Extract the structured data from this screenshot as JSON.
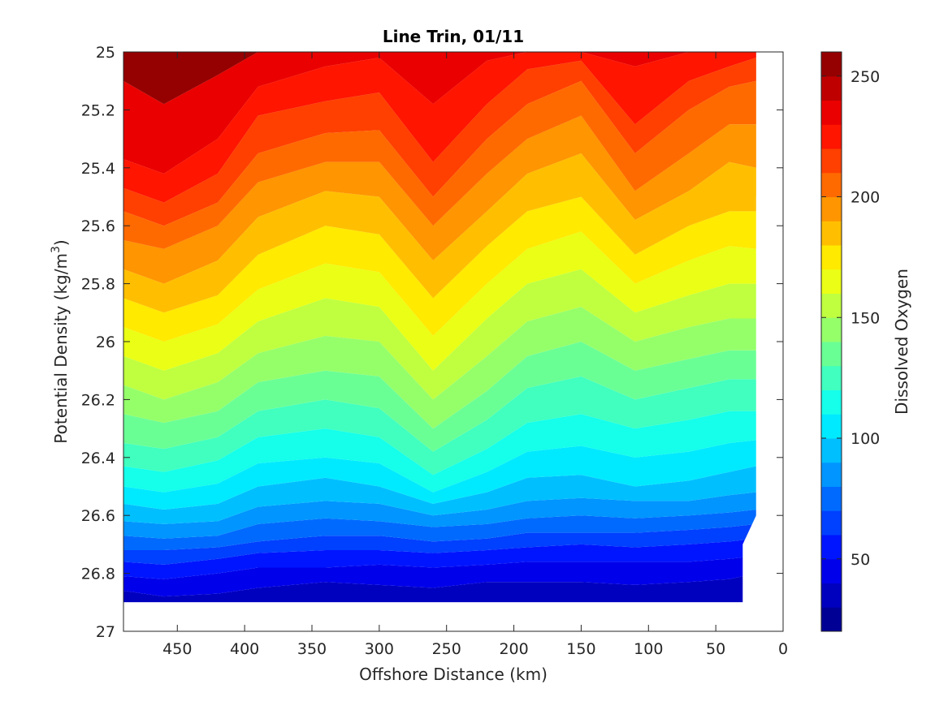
{
  "chart_data": {
    "type": "contour",
    "title": "Line Trin, 01/11",
    "xlabel": "Offshore Distance (km)",
    "ylabel": "Potential Density (kg/m",
    "ylabel_sup": "3",
    "ylabel_close": ")",
    "xlim": [
      490,
      0
    ],
    "ylim": [
      25,
      27
    ],
    "y_reversed": true,
    "x_reversed": true,
    "x_ticks": [
      450,
      400,
      350,
      300,
      250,
      200,
      150,
      100,
      50,
      0
    ],
    "y_ticks": [
      25,
      25.2,
      25.4,
      25.6,
      25.8,
      26,
      26.2,
      26.4,
      26.6,
      26.8,
      27
    ],
    "colorbar": {
      "label": "Dissolved Oxygen",
      "range": [
        20,
        260
      ],
      "ticks": [
        50,
        100,
        150,
        200,
        250
      ],
      "level_step": 10,
      "colormap": "jet"
    },
    "field": {
      "x": [
        490,
        460,
        420,
        390,
        340,
        300,
        260,
        220,
        190,
        150,
        110,
        70,
        40,
        20
      ],
      "density_of_level_isolines": [
        {
          "level": 250,
          "density": [
            25.1,
            25.18,
            25.08,
            25.0,
            25.0,
            25.0,
            25.0,
            25.0,
            25.0,
            25.0,
            25.0,
            25.0,
            25.0,
            25.0
          ]
        },
        {
          "level": 230,
          "density": [
            25.37,
            25.42,
            25.3,
            25.12,
            25.05,
            25.02,
            25.18,
            25.03,
            25.0,
            25.0,
            25.05,
            25.0,
            25.0,
            25.0
          ]
        },
        {
          "level": 220,
          "density": [
            25.47,
            25.52,
            25.42,
            25.22,
            25.17,
            25.14,
            25.38,
            25.18,
            25.06,
            25.03,
            25.25,
            25.1,
            25.05,
            25.02
          ]
        },
        {
          "level": 210,
          "density": [
            25.55,
            25.6,
            25.52,
            25.35,
            25.28,
            25.27,
            25.5,
            25.3,
            25.18,
            25.1,
            25.35,
            25.2,
            25.12,
            25.1
          ]
        },
        {
          "level": 200,
          "density": [
            25.65,
            25.68,
            25.6,
            25.45,
            25.38,
            25.38,
            25.6,
            25.42,
            25.3,
            25.22,
            25.48,
            25.35,
            25.25,
            25.25
          ]
        },
        {
          "level": 190,
          "density": [
            25.75,
            25.8,
            25.72,
            25.57,
            25.48,
            25.5,
            25.72,
            25.55,
            25.42,
            25.35,
            25.58,
            25.48,
            25.38,
            25.4
          ]
        },
        {
          "level": 180,
          "density": [
            25.85,
            25.9,
            25.84,
            25.7,
            25.6,
            25.63,
            25.85,
            25.67,
            25.55,
            25.5,
            25.7,
            25.6,
            25.55,
            25.55
          ]
        },
        {
          "level": 170,
          "density": [
            25.95,
            26.0,
            25.94,
            25.82,
            25.73,
            25.76,
            25.98,
            25.8,
            25.68,
            25.62,
            25.8,
            25.72,
            25.67,
            25.68
          ]
        },
        {
          "level": 160,
          "density": [
            26.05,
            26.1,
            26.04,
            25.93,
            25.85,
            25.88,
            26.1,
            25.92,
            25.8,
            25.75,
            25.9,
            25.84,
            25.8,
            25.8
          ]
        },
        {
          "level": 150,
          "density": [
            26.15,
            26.2,
            26.14,
            26.04,
            25.98,
            26.0,
            26.2,
            26.05,
            25.93,
            25.88,
            26.0,
            25.95,
            25.92,
            25.92
          ]
        },
        {
          "level": 140,
          "density": [
            26.25,
            26.28,
            26.24,
            26.14,
            26.1,
            26.12,
            26.3,
            26.17,
            26.05,
            26.0,
            26.1,
            26.06,
            26.03,
            26.03
          ]
        },
        {
          "level": 130,
          "density": [
            26.35,
            26.37,
            26.33,
            26.24,
            26.2,
            26.23,
            26.38,
            26.27,
            26.16,
            26.12,
            26.2,
            26.16,
            26.13,
            26.13
          ]
        },
        {
          "level": 120,
          "density": [
            26.43,
            26.45,
            26.41,
            26.33,
            26.3,
            26.33,
            26.46,
            26.37,
            26.28,
            26.25,
            26.3,
            26.27,
            26.24,
            26.24
          ]
        },
        {
          "level": 110,
          "density": [
            26.5,
            26.52,
            26.49,
            26.42,
            26.4,
            26.42,
            26.52,
            26.45,
            26.38,
            26.36,
            26.4,
            26.38,
            26.35,
            26.34
          ]
        },
        {
          "level": 100,
          "density": [
            26.56,
            26.58,
            26.56,
            26.5,
            26.47,
            26.5,
            26.56,
            26.52,
            26.47,
            26.46,
            26.5,
            26.48,
            26.45,
            26.43
          ]
        },
        {
          "level": 90,
          "density": [
            26.62,
            26.63,
            26.62,
            26.57,
            26.55,
            26.56,
            26.6,
            26.58,
            26.55,
            26.54,
            26.55,
            26.55,
            26.53,
            26.52
          ]
        },
        {
          "level": 80,
          "density": [
            26.67,
            26.68,
            26.67,
            26.63,
            26.61,
            26.62,
            26.64,
            26.63,
            26.61,
            26.6,
            26.61,
            26.6,
            26.59,
            26.58
          ]
        },
        {
          "level": 70,
          "density": [
            26.72,
            26.72,
            26.71,
            26.69,
            26.67,
            26.67,
            26.69,
            26.68,
            26.66,
            26.66,
            26.66,
            26.65,
            26.64,
            26.63
          ]
        },
        {
          "level": 60,
          "density": [
            26.76,
            26.77,
            26.75,
            26.73,
            26.72,
            26.72,
            26.73,
            26.72,
            26.71,
            26.7,
            26.71,
            26.7,
            26.69,
            26.68
          ]
        },
        {
          "level": 50,
          "density": [
            26.81,
            26.82,
            26.8,
            26.78,
            26.78,
            26.77,
            26.78,
            26.77,
            26.76,
            26.76,
            26.76,
            26.76,
            26.75,
            26.74
          ]
        },
        {
          "level": 40,
          "density": [
            26.86,
            26.88,
            26.87,
            26.85,
            26.83,
            26.84,
            26.85,
            26.83,
            26.83,
            26.83,
            26.84,
            26.83,
            26.82,
            26.8
          ]
        }
      ],
      "data_bottom_density": 26.9,
      "data_offshore_limit": 490,
      "data_coast_outline": [
        [
          30,
          26.9
        ],
        [
          30,
          26.7
        ],
        [
          20,
          26.6
        ],
        [
          20,
          25.5
        ],
        [
          10,
          25.4
        ],
        [
          10,
          25.0
        ]
      ]
    }
  }
}
